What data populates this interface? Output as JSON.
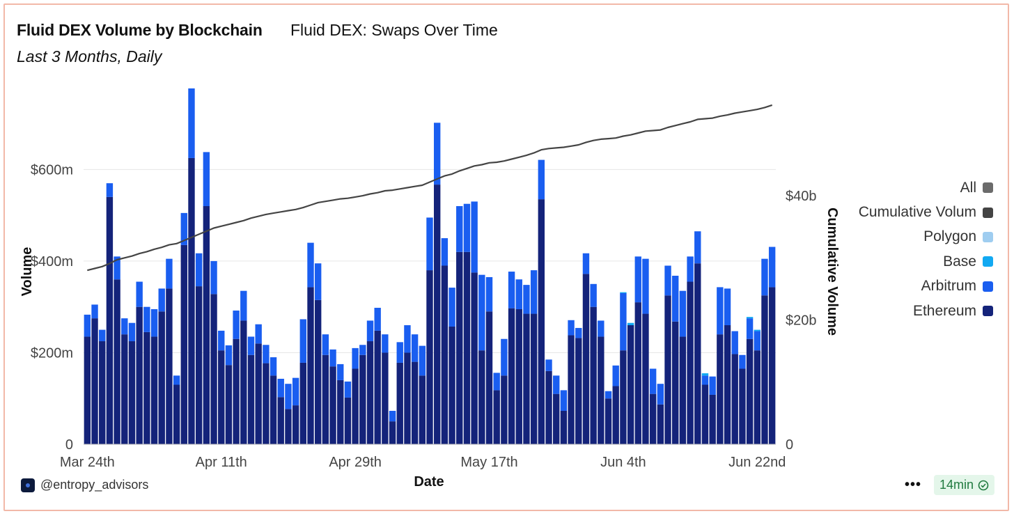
{
  "header": {
    "title": "Fluid DEX Volume by Blockchain",
    "subtitle": "Fluid DEX: Swaps Over Time",
    "period": "Last 3 Months, Daily"
  },
  "footer": {
    "author": "@entropy_advisors",
    "more_label": "•••",
    "refresh_label": "14min"
  },
  "colors": {
    "ethereum": "#14237a",
    "arbitrum": "#1a5ef0",
    "base": "#12a9f2",
    "polygon": "#9fcdf0",
    "cumulative": "#444444",
    "all": "#6b6b6b"
  },
  "chart_data": {
    "type": "bar",
    "stacked": true,
    "xlabel": "Date",
    "ylabel": "Volume",
    "y2label": "Cumulative Volume",
    "ylim": [
      0,
      780
    ],
    "y2lim": [
      0,
      57.5
    ],
    "yticks": [
      0,
      200,
      400,
      600
    ],
    "ytick_labels": [
      "0",
      "$200m",
      "$400m",
      "$600m"
    ],
    "y2ticks": [
      0,
      20,
      40
    ],
    "y2tick_labels": [
      "0",
      "$20b",
      "$40b"
    ],
    "x_tick_labels": [
      "Mar 24th",
      "Apr 11th",
      "Apr 29th",
      "May 17th",
      "Jun 4th",
      "Jun 22nd"
    ],
    "x_tick_indices": [
      0,
      18,
      36,
      54,
      72,
      90
    ],
    "legend": [
      "All",
      "Cumulative Volum",
      "Polygon",
      "Base",
      "Arbitrum",
      "Ethereum"
    ],
    "legend_colors": [
      "#6b6b6b",
      "#444444",
      "#9fcdf0",
      "#12a9f2",
      "#1a5ef0",
      "#14237a"
    ],
    "series": [
      {
        "name": "Ethereum",
        "values": [
          235,
          275,
          225,
          540,
          360,
          240,
          225,
          300,
          245,
          235,
          290,
          340,
          130,
          435,
          625,
          345,
          520,
          328,
          205,
          173,
          230,
          270,
          195,
          220,
          177,
          150,
          103,
          77,
          85,
          178,
          343,
          315,
          195,
          170,
          140,
          102,
          165,
          195,
          225,
          248,
          200,
          50,
          178,
          200,
          180,
          150,
          380,
          567,
          390,
          257,
          420,
          420,
          375,
          205,
          290,
          118,
          150,
          297,
          295,
          285,
          285,
          535,
          160,
          110,
          73,
          238,
          232,
          372,
          300,
          235,
          100,
          127,
          205,
          260,
          310,
          285,
          110,
          87,
          325,
          268,
          235,
          355,
          395,
          130,
          108,
          240,
          260,
          197,
          165,
          230,
          205,
          325,
          343
        ]
      },
      {
        "name": "Arbitrum",
        "values": [
          48,
          30,
          25,
          30,
          50,
          35,
          40,
          55,
          55,
          60,
          50,
          65,
          20,
          70,
          152,
          72,
          118,
          72,
          43,
          43,
          62,
          65,
          40,
          42,
          40,
          40,
          40,
          55,
          60,
          95,
          97,
          80,
          45,
          37,
          35,
          35,
          45,
          22,
          45,
          50,
          40,
          23,
          45,
          60,
          60,
          65,
          115,
          135,
          60,
          85,
          100,
          105,
          155,
          165,
          75,
          38,
          80,
          80,
          65,
          63,
          95,
          86,
          25,
          40,
          45,
          33,
          22,
          45,
          50,
          35,
          16,
          45,
          125,
          0,
          100,
          120,
          55,
          45,
          65,
          100,
          100,
          55,
          70,
          20,
          40,
          103,
          80,
          50,
          30,
          45,
          42,
          80,
          88
        ]
      },
      {
        "name": "Base",
        "values": [
          0,
          0,
          0,
          0,
          0,
          0,
          0,
          0,
          0,
          0,
          0,
          0,
          0,
          0,
          0,
          0,
          0,
          0,
          0,
          0,
          0,
          0,
          0,
          0,
          0,
          0,
          0,
          0,
          0,
          0,
          0,
          0,
          0,
          0,
          0,
          0,
          0,
          0,
          0,
          0,
          0,
          0,
          0,
          0,
          0,
          0,
          0,
          0,
          0,
          0,
          0,
          0,
          0,
          0,
          0,
          0,
          0,
          0,
          0,
          0,
          0,
          0,
          0,
          0,
          0,
          0,
          0,
          0,
          0,
          0,
          0,
          0,
          2,
          5,
          0,
          0,
          0,
          0,
          0,
          0,
          0,
          0,
          0,
          5,
          0,
          0,
          0,
          0,
          0,
          3,
          3,
          0,
          0
        ]
      },
      {
        "name": "Polygon",
        "values": [
          0,
          0,
          0,
          0,
          0,
          0,
          0,
          0,
          0,
          0,
          0,
          0,
          0,
          0,
          0,
          0,
          0,
          0,
          0,
          0,
          0,
          0,
          0,
          0,
          0,
          0,
          0,
          0,
          0,
          0,
          0,
          0,
          0,
          0,
          0,
          0,
          0,
          0,
          0,
          0,
          0,
          0,
          0,
          0,
          0,
          0,
          0,
          0,
          0,
          0,
          0,
          0,
          0,
          0,
          0,
          0,
          0,
          0,
          0,
          0,
          0,
          0,
          0,
          0,
          0,
          0,
          0,
          0,
          0,
          0,
          0,
          0,
          0,
          0,
          0,
          0,
          0,
          0,
          0,
          0,
          0,
          0,
          0,
          0,
          0,
          0,
          0,
          0,
          0,
          0,
          0,
          0,
          0
        ]
      },
      {
        "name": "Cumulative Volum",
        "axis": "right",
        "values": [
          28.0,
          28.3,
          28.6,
          29.1,
          29.7,
          30.0,
          30.3,
          30.7,
          31.0,
          31.4,
          31.7,
          32.1,
          32.3,
          32.8,
          33.3,
          33.8,
          34.3,
          34.8,
          35.1,
          35.4,
          35.7,
          36.0,
          36.4,
          36.7,
          37.0,
          37.2,
          37.4,
          37.6,
          37.8,
          38.1,
          38.5,
          38.9,
          39.1,
          39.3,
          39.5,
          39.6,
          39.8,
          40.0,
          40.3,
          40.5,
          40.8,
          40.9,
          41.1,
          41.3,
          41.5,
          41.7,
          42.2,
          42.7,
          43.2,
          43.5,
          44.0,
          44.4,
          44.8,
          45.0,
          45.3,
          45.4,
          45.6,
          45.9,
          46.2,
          46.5,
          46.9,
          47.4,
          47.6,
          47.7,
          47.8,
          48.0,
          48.2,
          48.6,
          48.9,
          49.1,
          49.2,
          49.3,
          49.6,
          49.8,
          50.1,
          50.4,
          50.5,
          50.6,
          51.0,
          51.3,
          51.6,
          51.9,
          52.3,
          52.4,
          52.5,
          52.8,
          53.0,
          53.3,
          53.5,
          53.7,
          53.9,
          54.2,
          54.6
        ]
      }
    ]
  }
}
